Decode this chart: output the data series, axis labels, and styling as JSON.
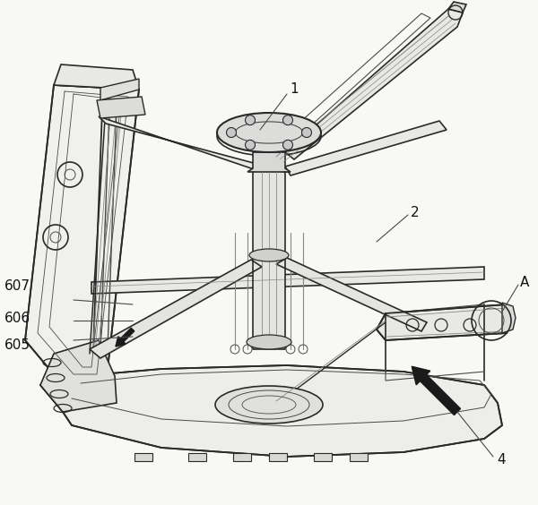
{
  "bg_color": "#F8F8F5",
  "lc": "#4a4a4a",
  "dc": "#2a2a2a",
  "lc2": "#888888",
  "label_fs": 11,
  "label_color": "#111111"
}
